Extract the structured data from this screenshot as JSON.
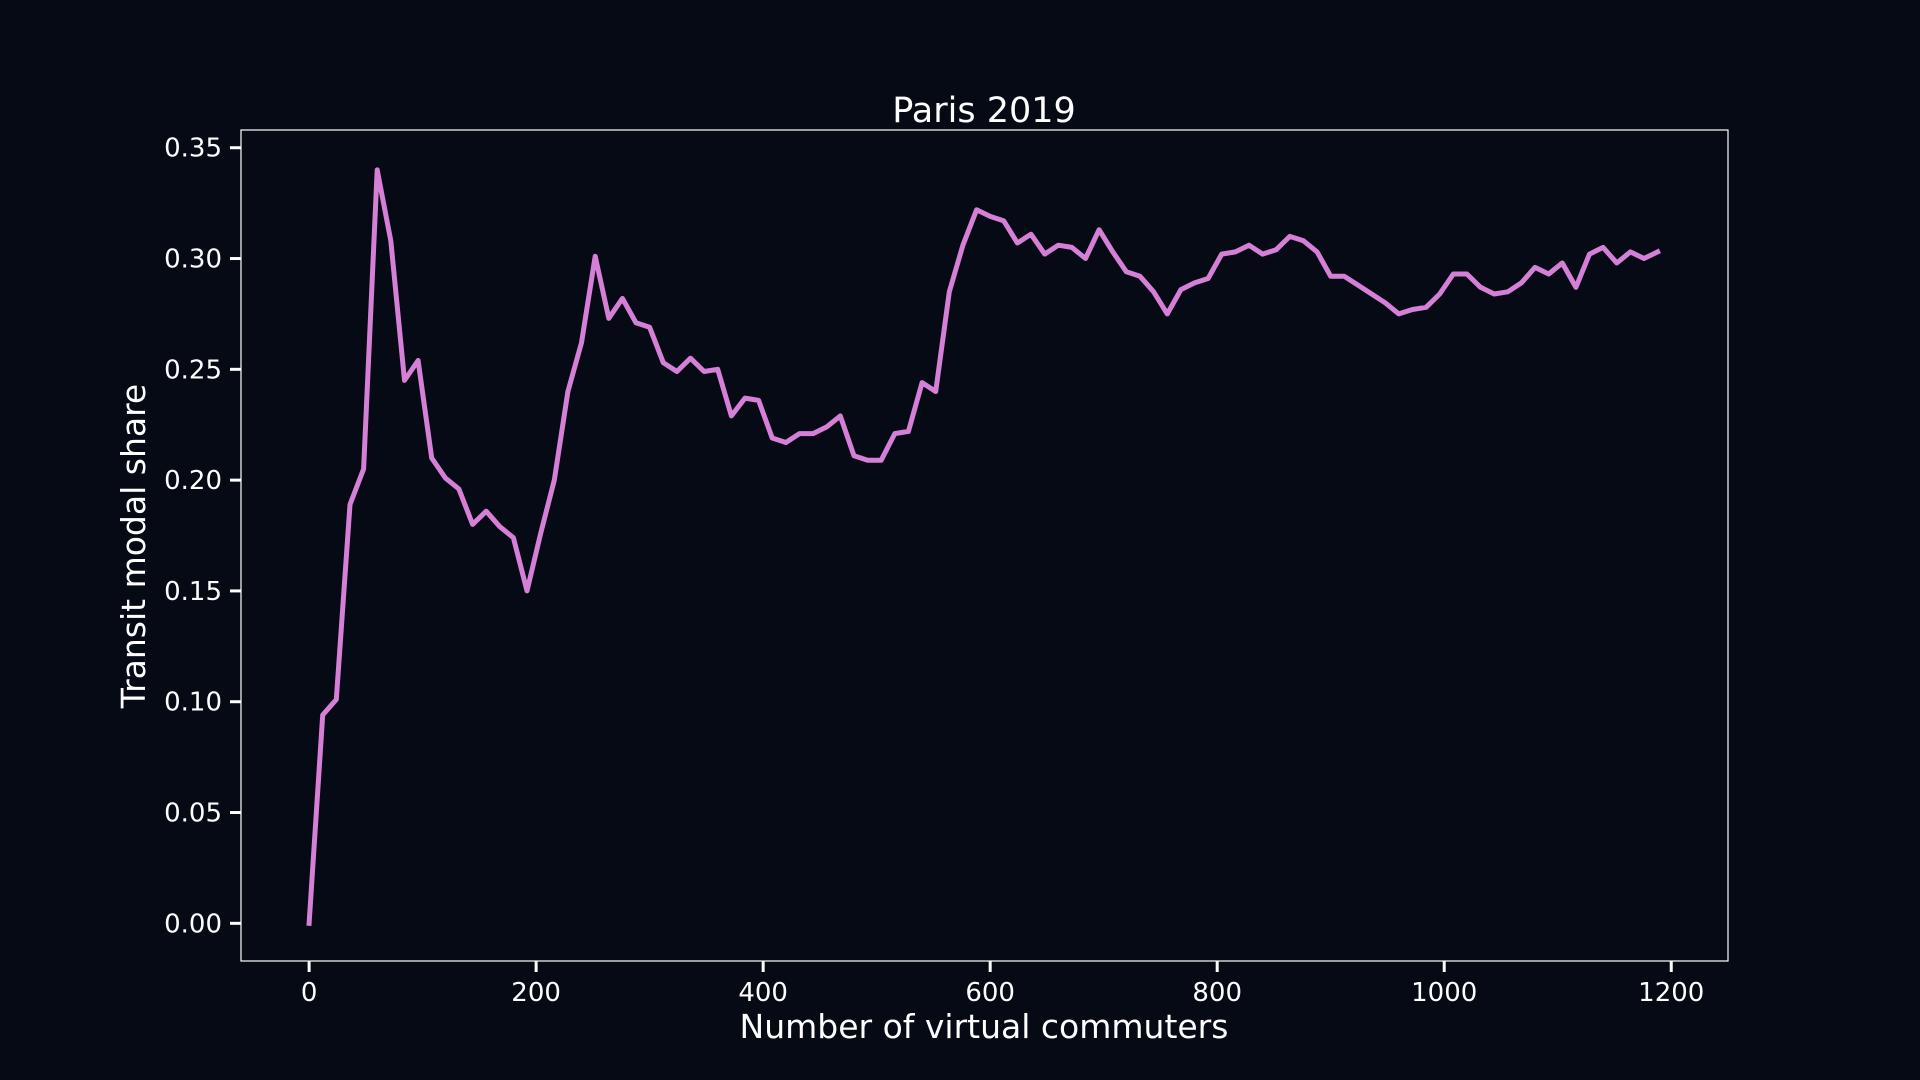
{
  "chart_data": {
    "type": "line",
    "title": "Paris 2019",
    "xlabel": "Number of virtual commuters",
    "ylabel": "Transit modal share",
    "xlim": [
      -60,
      1250
    ],
    "ylim": [
      -0.017,
      0.358
    ],
    "xticks": [
      0,
      200,
      400,
      600,
      800,
      1000,
      1200
    ],
    "yticks": [
      0.0,
      0.05,
      0.1,
      0.15,
      0.2,
      0.25,
      0.3,
      0.35
    ],
    "ytick_labels": [
      "0.00",
      "0.05",
      "0.10",
      "0.15",
      "0.20",
      "0.25",
      "0.30",
      "0.35"
    ],
    "grid": false,
    "legend": false,
    "series": [
      {
        "color": "#d67fd6",
        "x": [
          0,
          12,
          24,
          36,
          48,
          60,
          72,
          84,
          96,
          108,
          120,
          132,
          144,
          156,
          168,
          180,
          192,
          204,
          216,
          228,
          240,
          252,
          264,
          276,
          288,
          300,
          312,
          324,
          336,
          348,
          360,
          372,
          384,
          396,
          408,
          420,
          432,
          444,
          456,
          468,
          480,
          492,
          504,
          516,
          528,
          540,
          552,
          564,
          576,
          588,
          600,
          612,
          624,
          636,
          648,
          660,
          672,
          684,
          696,
          708,
          720,
          732,
          744,
          756,
          768,
          780,
          792,
          804,
          816,
          828,
          840,
          852,
          864,
          876,
          888,
          900,
          912,
          924,
          936,
          948,
          960,
          972,
          984,
          996,
          1008,
          1020,
          1032,
          1044,
          1056,
          1068,
          1080,
          1092,
          1104,
          1116,
          1128,
          1140,
          1152,
          1164,
          1176,
          1188
        ],
        "y": [
          0.0,
          0.094,
          0.101,
          0.189,
          0.205,
          0.34,
          0.308,
          0.245,
          0.254,
          0.21,
          0.201,
          0.196,
          0.18,
          0.186,
          0.179,
          0.174,
          0.15,
          0.176,
          0.2,
          0.24,
          0.262,
          0.301,
          0.273,
          0.282,
          0.271,
          0.269,
          0.253,
          0.249,
          0.255,
          0.249,
          0.25,
          0.229,
          0.237,
          0.236,
          0.219,
          0.217,
          0.221,
          0.221,
          0.224,
          0.229,
          0.211,
          0.209,
          0.209,
          0.221,
          0.222,
          0.244,
          0.24,
          0.285,
          0.306,
          0.322,
          0.319,
          0.317,
          0.307,
          0.311,
          0.302,
          0.306,
          0.305,
          0.3,
          0.313,
          0.303,
          0.294,
          0.292,
          0.285,
          0.275,
          0.286,
          0.289,
          0.291,
          0.302,
          0.303,
          0.306,
          0.302,
          0.304,
          0.31,
          0.308,
          0.303,
          0.292,
          0.292,
          0.288,
          0.284,
          0.28,
          0.275,
          0.277,
          0.278,
          0.284,
          0.293,
          0.293,
          0.287,
          0.284,
          0.285,
          0.289,
          0.296,
          0.293,
          0.298,
          0.287,
          0.302,
          0.305,
          0.298,
          0.303,
          0.3,
          0.303
        ]
      }
    ]
  }
}
